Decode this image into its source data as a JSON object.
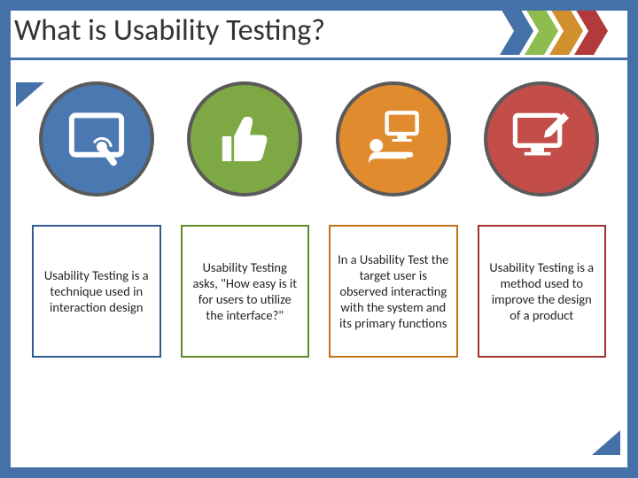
{
  "frame_color": "#4472a8",
  "title": "What is Usability Testing?",
  "title_color": "#333333",
  "underline_color": "#4472a8",
  "chevron_colors": [
    "#4472a8",
    "#8fbc4f",
    "#d28f2e",
    "#b23a3a"
  ],
  "columns": [
    {
      "circle_fill": "#4a78b0",
      "circle_border": "#5a5a5a",
      "box_border": "#2f5a93",
      "icon": "tablet-touch",
      "text": "Usability Testing is a technique used in interaction design"
    },
    {
      "circle_fill": "#7da843",
      "circle_border": "#5a5a5a",
      "box_border": "#5f8a2a",
      "icon": "thumbs-up",
      "text": "Usability Testing asks, \"How easy is it for users to utilize the interface?\""
    },
    {
      "circle_fill": "#e08b2e",
      "circle_border": "#5a5a5a",
      "box_border": "#c4711c",
      "icon": "user-monitor",
      "text": "In a Usability Test the target user is observed interacting with the system and its primary functions"
    },
    {
      "circle_fill": "#c24d49",
      "circle_border": "#5a5a5a",
      "box_border": "#a03430",
      "icon": "monitor-pen",
      "text": "Usability Testing is a method used to improve the design of a product"
    }
  ],
  "box_font_size": 14.5,
  "corner_tab_color": "#4472a8"
}
